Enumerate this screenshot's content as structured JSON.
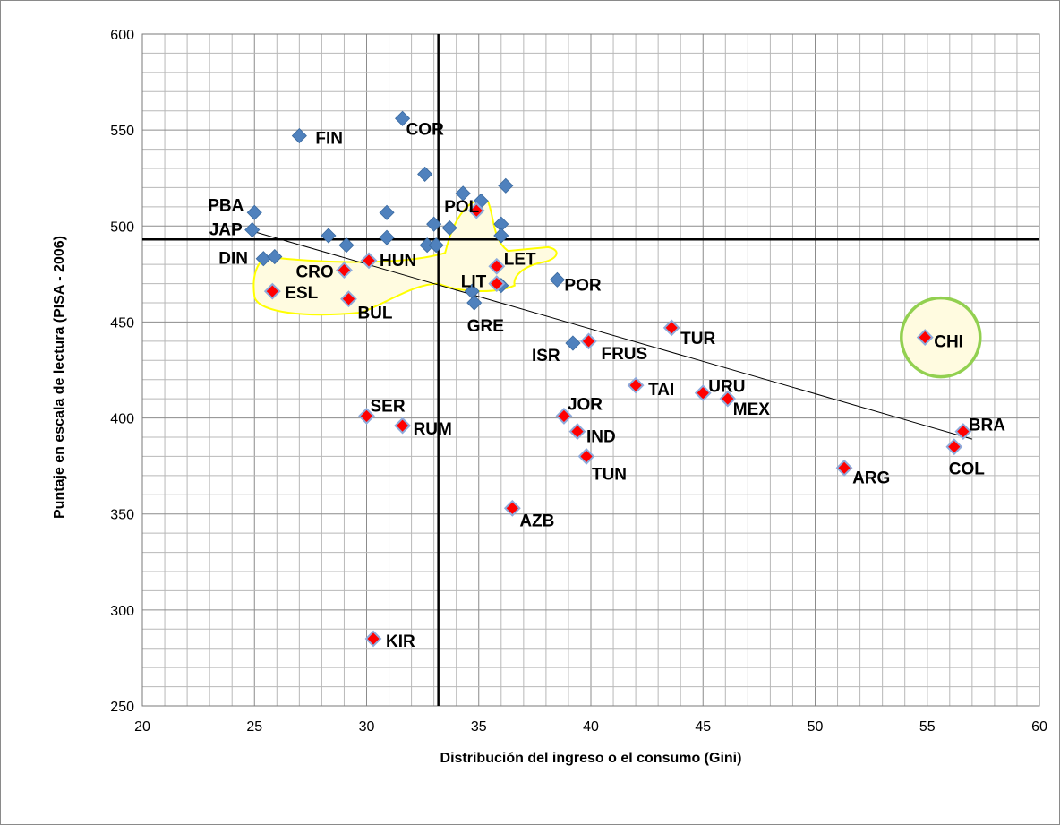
{
  "chart_data": {
    "type": "scatter",
    "title": "",
    "xlabel": "Distribución del ingreso o el consumo (Gini)",
    "ylabel": "Puntaje en escala de lectura (PISA - 2006)",
    "xlim": [
      20,
      60
    ],
    "ylim": [
      250,
      600
    ],
    "x_ticks": [
      "20",
      "25",
      "30",
      "35",
      "40",
      "45",
      "50",
      "55",
      "60"
    ],
    "y_ticks": [
      "250",
      "300",
      "350",
      "400",
      "450",
      "500",
      "550",
      "600"
    ],
    "grid": true,
    "reference_lines": {
      "vertical_x": 33.2,
      "horizontal_y": 493
    },
    "trendline": {
      "from": [
        25,
        497
      ],
      "to": [
        57,
        389
      ]
    },
    "colors": {
      "blue_marker": "#4f81bd",
      "red_marker": "#ff0000",
      "highlight_outline": "#ffff00",
      "highlight_fill": "#fffbe0",
      "circle_outline": "#92d050"
    },
    "series": [
      {
        "marker": "blue",
        "points": [
          {
            "x": 27.0,
            "y": 547,
            "label": "FIN"
          },
          {
            "x": 31.6,
            "y": 556,
            "label": "COR"
          },
          {
            "x": 25.0,
            "y": 507,
            "label": "PBA"
          },
          {
            "x": 24.9,
            "y": 498,
            "label": "JAP"
          },
          {
            "x": 25.4,
            "y": 483,
            "label": "DIN"
          },
          {
            "x": 25.9,
            "y": 484,
            "label": ""
          },
          {
            "x": 28.3,
            "y": 495,
            "label": ""
          },
          {
            "x": 29.1,
            "y": 490,
            "label": ""
          },
          {
            "x": 30.9,
            "y": 507,
            "label": ""
          },
          {
            "x": 30.9,
            "y": 494,
            "label": ""
          },
          {
            "x": 32.6,
            "y": 527,
            "label": ""
          },
          {
            "x": 32.7,
            "y": 490,
            "label": ""
          },
          {
            "x": 33.0,
            "y": 501,
            "label": ""
          },
          {
            "x": 33.1,
            "y": 490,
            "label": ""
          },
          {
            "x": 33.7,
            "y": 499,
            "label": ""
          },
          {
            "x": 34.3,
            "y": 517,
            "label": ""
          },
          {
            "x": 35.1,
            "y": 513,
            "label": ""
          },
          {
            "x": 36.2,
            "y": 521,
            "label": ""
          },
          {
            "x": 36.0,
            "y": 501,
            "label": ""
          },
          {
            "x": 36.0,
            "y": 495,
            "label": ""
          },
          {
            "x": 36.0,
            "y": 469,
            "label": ""
          },
          {
            "x": 34.7,
            "y": 466,
            "label": ""
          },
          {
            "x": 34.8,
            "y": 460,
            "label": "GRE"
          },
          {
            "x": 38.5,
            "y": 472,
            "label": "POR"
          },
          {
            "x": 39.2,
            "y": 439,
            "label": "ISR"
          }
        ]
      },
      {
        "marker": "red",
        "points": [
          {
            "x": 34.9,
            "y": 508,
            "label": "POL"
          },
          {
            "x": 35.8,
            "y": 479,
            "label": "LET"
          },
          {
            "x": 35.8,
            "y": 470,
            "label": "LIT"
          },
          {
            "x": 30.1,
            "y": 482,
            "label": "HUN"
          },
          {
            "x": 29.0,
            "y": 477,
            "label": "CRO"
          },
          {
            "x": 25.8,
            "y": 466,
            "label": "ESL"
          },
          {
            "x": 29.2,
            "y": 462,
            "label": "BUL"
          },
          {
            "x": 39.9,
            "y": 440,
            "label": "FRUS"
          },
          {
            "x": 43.6,
            "y": 447,
            "label": "TUR"
          },
          {
            "x": 42.0,
            "y": 417,
            "label": "TAI"
          },
          {
            "x": 45.0,
            "y": 413,
            "label": "URU"
          },
          {
            "x": 46.1,
            "y": 410,
            "label": "MEX"
          },
          {
            "x": 54.9,
            "y": 442,
            "label": "CHI"
          },
          {
            "x": 30.0,
            "y": 401,
            "label": "SER"
          },
          {
            "x": 31.6,
            "y": 396,
            "label": "RUM"
          },
          {
            "x": 38.8,
            "y": 401,
            "label": "JOR"
          },
          {
            "x": 39.4,
            "y": 393,
            "label": "IND"
          },
          {
            "x": 39.8,
            "y": 380,
            "label": "TUN"
          },
          {
            "x": 36.5,
            "y": 353,
            "label": "AZB"
          },
          {
            "x": 56.6,
            "y": 393,
            "label": "BRA"
          },
          {
            "x": 56.2,
            "y": 385,
            "label": "COL"
          },
          {
            "x": 51.3,
            "y": 374,
            "label": "ARG"
          },
          {
            "x": 30.3,
            "y": 285,
            "label": "KIR"
          }
        ]
      }
    ]
  }
}
